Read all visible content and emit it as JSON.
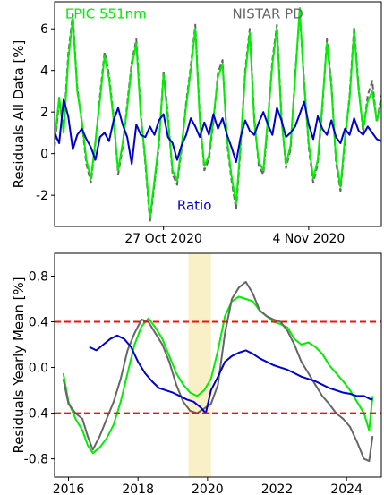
{
  "chart_data": [
    {
      "type": "line",
      "title": "",
      "xlabel": "",
      "ylabel": "Residuals All Data [%]",
      "xlim": [
        "2020-10-21",
        "2020-11-08"
      ],
      "ylim": [
        -3.5,
        7.3
      ],
      "x_ticks": [
        {
          "date": "2020-10-27",
          "label": "27 Oct 2020"
        },
        {
          "date": "2020-11-04",
          "label": "4 Nov 2020"
        }
      ],
      "y_ticks": [
        {
          "value": -2,
          "label": "-2"
        },
        {
          "value": 0,
          "label": "0"
        },
        {
          "value": 2,
          "label": "2"
        },
        {
          "value": 4,
          "label": "4"
        },
        {
          "value": 6,
          "label": "6"
        }
      ],
      "grid": false,
      "legend": "text annotations inside plot",
      "annotations": [
        {
          "text": "EPIC 551nm",
          "color": "#00ee00",
          "date": "2020-10-21T14:00",
          "value": 6.5
        },
        {
          "text": "NISTAR PD",
          "color": "#666666",
          "date": "2020-10-30T19:00",
          "value": 6.5
        },
        {
          "text": "Ratio",
          "color": "#0000cc",
          "date": "2020-10-27T18:00",
          "value": -2.7
        }
      ],
      "series": [
        {
          "color": "#666666",
          "dashed": true,
          "x": [
            "2020-10-21T00:00",
            "2020-10-21T06:00",
            "2020-10-21T12:00",
            "2020-10-21T18:00",
            "2020-10-22T00:00",
            "2020-10-22T06:00",
            "2020-10-22T12:00",
            "2020-10-22T18:00",
            "2020-10-23T00:00",
            "2020-10-23T06:00",
            "2020-10-23T12:00",
            "2020-10-23T18:00",
            "2020-10-24T00:00",
            "2020-10-24T06:00",
            "2020-10-24T12:00",
            "2020-10-24T18:00",
            "2020-10-25T00:00",
            "2020-10-25T06:00",
            "2020-10-25T12:00",
            "2020-10-25T18:00",
            "2020-10-26T00:00",
            "2020-10-26T06:00",
            "2020-10-26T12:00",
            "2020-10-26T18:00",
            "2020-10-27T00:00",
            "2020-10-27T06:00",
            "2020-10-27T12:00",
            "2020-10-27T18:00",
            "2020-10-28T00:00",
            "2020-10-28T06:00",
            "2020-10-28T12:00",
            "2020-10-28T18:00",
            "2020-10-29T00:00",
            "2020-10-29T06:00",
            "2020-10-29T12:00",
            "2020-10-29T18:00",
            "2020-10-30T00:00",
            "2020-10-30T06:00",
            "2020-10-30T12:00",
            "2020-10-30T18:00",
            "2020-10-31T00:00",
            "2020-10-31T06:00",
            "2020-10-31T12:00",
            "2020-10-31T18:00",
            "2020-11-01T00:00",
            "2020-11-01T06:00",
            "2020-11-01T12:00",
            "2020-11-01T18:00",
            "2020-11-02T00:00",
            "2020-11-02T06:00",
            "2020-11-02T12:00",
            "2020-11-02T18:00",
            "2020-11-03T00:00",
            "2020-11-03T06:00",
            "2020-11-03T12:00",
            "2020-11-03T18:00",
            "2020-11-04T00:00",
            "2020-11-04T06:00",
            "2020-11-04T12:00",
            "2020-11-04T18:00",
            "2020-11-05T00:00",
            "2020-11-05T06:00",
            "2020-11-05T12:00",
            "2020-11-05T18:00",
            "2020-11-06T00:00",
            "2020-11-06T06:00",
            "2020-11-06T12:00",
            "2020-11-06T18:00",
            "2020-11-07T00:00",
            "2020-11-07T06:00",
            "2020-11-07T12:00",
            "2020-11-07T18:00",
            "2020-11-08T00:00"
          ],
          "values": [
            0.3,
            2.5,
            1.2,
            4.8,
            6.7,
            3.2,
            1.5,
            -0.5,
            -1.4,
            0.5,
            2.8,
            4.9,
            3.8,
            1.8,
            -1.0,
            0.3,
            2.4,
            4.4,
            5.5,
            2.0,
            -0.5,
            -3.3,
            -1.5,
            0.4,
            4.0,
            1.8,
            -1.0,
            -1.5,
            0.2,
            2.5,
            4.2,
            6.2,
            1.8,
            -0.8,
            -0.3,
            1.5,
            3.9,
            4.5,
            0.5,
            -1.3,
            -2.7,
            0.3,
            4.0,
            6.0,
            1.7,
            -0.6,
            -1.0,
            1.5,
            4.5,
            6.2,
            1.8,
            -0.7,
            0.2,
            3.8,
            6.7,
            3.5,
            0.3,
            -1.4,
            -0.5,
            2.2,
            5.5,
            3.4,
            -0.4,
            -1.8,
            0.6,
            2.8,
            6.1,
            3.2,
            1.0,
            2.8,
            3.5,
            1.5,
            2.8
          ]
        },
        {
          "color": "#00ee00",
          "dashed": false,
          "x": [
            "2020-10-21T00:00",
            "2020-10-21T06:00",
            "2020-10-21T12:00",
            "2020-10-21T18:00",
            "2020-10-22T00:00",
            "2020-10-22T06:00",
            "2020-10-22T12:00",
            "2020-10-22T18:00",
            "2020-10-23T00:00",
            "2020-10-23T06:00",
            "2020-10-23T12:00",
            "2020-10-23T18:00",
            "2020-10-24T00:00",
            "2020-10-24T06:00",
            "2020-10-24T12:00",
            "2020-10-24T18:00",
            "2020-10-25T00:00",
            "2020-10-25T06:00",
            "2020-10-25T12:00",
            "2020-10-25T18:00",
            "2020-10-26T00:00",
            "2020-10-26T06:00",
            "2020-10-26T12:00",
            "2020-10-26T18:00",
            "2020-10-27T00:00",
            "2020-10-27T06:00",
            "2020-10-27T12:00",
            "2020-10-27T18:00",
            "2020-10-28T00:00",
            "2020-10-28T06:00",
            "2020-10-28T12:00",
            "2020-10-28T18:00",
            "2020-10-29T00:00",
            "2020-10-29T06:00",
            "2020-10-29T12:00",
            "2020-10-29T18:00",
            "2020-10-30T00:00",
            "2020-10-30T06:00",
            "2020-10-30T12:00",
            "2020-10-30T18:00",
            "2020-10-31T00:00",
            "2020-10-31T06:00",
            "2020-10-31T12:00",
            "2020-10-31T18:00",
            "2020-11-01T00:00",
            "2020-11-01T06:00",
            "2020-11-01T12:00",
            "2020-11-01T18:00",
            "2020-11-02T00:00",
            "2020-11-02T06:00",
            "2020-11-02T12:00",
            "2020-11-02T18:00",
            "2020-11-03T00:00",
            "2020-11-03T06:00",
            "2020-11-03T12:00",
            "2020-11-03T18:00",
            "2020-11-04T00:00",
            "2020-11-04T06:00",
            "2020-11-04T12:00",
            "2020-11-04T18:00",
            "2020-11-05T00:00",
            "2020-11-05T06:00",
            "2020-11-05T12:00",
            "2020-11-05T18:00",
            "2020-11-06T00:00",
            "2020-11-06T06:00",
            "2020-11-06T12:00",
            "2020-11-06T18:00",
            "2020-11-07T00:00",
            "2020-11-07T06:00",
            "2020-11-07T12:00",
            "2020-11-07T18:00",
            "2020-11-08T00:00"
          ],
          "values": [
            0.6,
            2.7,
            1.0,
            4.5,
            6.5,
            3.0,
            1.6,
            -0.3,
            -1.2,
            0.6,
            2.6,
            4.7,
            3.6,
            1.6,
            -0.8,
            0.5,
            2.2,
            4.2,
            5.3,
            1.8,
            -0.3,
            -3.1,
            -1.3,
            0.6,
            3.8,
            1.6,
            -0.8,
            -1.3,
            0.4,
            2.3,
            4.0,
            6.0,
            1.6,
            -0.6,
            -0.1,
            1.7,
            3.7,
            4.3,
            0.7,
            -1.1,
            -2.4,
            0.5,
            3.8,
            5.8,
            1.5,
            -0.4,
            -0.8,
            1.7,
            4.3,
            6.0,
            1.6,
            -0.5,
            0.4,
            3.6,
            7.0,
            3.3,
            0.5,
            -1.2,
            -0.3,
            2.4,
            5.3,
            3.2,
            -0.2,
            -1.6,
            0.8,
            2.6,
            5.9,
            3.0,
            1.2,
            2.5,
            3.0,
            1.6,
            2.5
          ]
        },
        {
          "color": "#0000cc",
          "dashed": false,
          "x": [
            "2020-10-21T00:00",
            "2020-10-21T06:00",
            "2020-10-21T12:00",
            "2020-10-21T18:00",
            "2020-10-22T00:00",
            "2020-10-22T06:00",
            "2020-10-22T12:00",
            "2020-10-22T18:00",
            "2020-10-23T00:00",
            "2020-10-23T06:00",
            "2020-10-23T12:00",
            "2020-10-23T18:00",
            "2020-10-24T00:00",
            "2020-10-24T06:00",
            "2020-10-24T12:00",
            "2020-10-24T18:00",
            "2020-10-25T00:00",
            "2020-10-25T06:00",
            "2020-10-25T12:00",
            "2020-10-25T18:00",
            "2020-10-26T00:00",
            "2020-10-26T06:00",
            "2020-10-26T12:00",
            "2020-10-26T18:00",
            "2020-10-27T00:00",
            "2020-10-27T06:00",
            "2020-10-27T12:00",
            "2020-10-27T18:00",
            "2020-10-28T00:00",
            "2020-10-28T06:00",
            "2020-10-28T12:00",
            "2020-10-28T18:00",
            "2020-10-29T00:00",
            "2020-10-29T06:00",
            "2020-10-29T12:00",
            "2020-10-29T18:00",
            "2020-10-30T00:00",
            "2020-10-30T06:00",
            "2020-10-30T12:00",
            "2020-10-30T18:00",
            "2020-10-31T00:00",
            "2020-10-31T06:00",
            "2020-10-31T12:00",
            "2020-10-31T18:00",
            "2020-11-01T00:00",
            "2020-11-01T06:00",
            "2020-11-01T12:00",
            "2020-11-01T18:00",
            "2020-11-02T00:00",
            "2020-11-02T06:00",
            "2020-11-02T12:00",
            "2020-11-02T18:00",
            "2020-11-03T00:00",
            "2020-11-03T06:00",
            "2020-11-03T12:00",
            "2020-11-03T18:00",
            "2020-11-04T00:00",
            "2020-11-04T06:00",
            "2020-11-04T12:00",
            "2020-11-04T18:00",
            "2020-11-05T00:00",
            "2020-11-05T06:00",
            "2020-11-05T12:00",
            "2020-11-05T18:00",
            "2020-11-06T00:00",
            "2020-11-06T06:00",
            "2020-11-06T12:00",
            "2020-11-06T18:00",
            "2020-11-07T00:00",
            "2020-11-07T06:00",
            "2020-11-07T12:00",
            "2020-11-07T18:00",
            "2020-11-08T00:00"
          ],
          "values": [
            1.0,
            0.5,
            2.6,
            1.8,
            0.2,
            0.9,
            1.2,
            0.7,
            0.3,
            -0.3,
            0.8,
            1.0,
            0.6,
            1.6,
            2.2,
            1.4,
            0.8,
            -0.5,
            1.4,
            0.9,
            0.8,
            1.3,
            0.9,
            1.6,
            1.9,
            0.8,
            0.5,
            -0.3,
            0.4,
            0.9,
            1.7,
            1.3,
            0.8,
            1.5,
            0.9,
            1.9,
            1.2,
            1.7,
            0.9,
            0.3,
            -0.4,
            0.8,
            1.6,
            1.1,
            0.9,
            1.5,
            2.0,
            1.4,
            0.9,
            2.2,
            1.6,
            0.8,
            1.0,
            1.3,
            1.9,
            2.5,
            1.4,
            0.7,
            1.8,
            1.2,
            0.9,
            1.6,
            0.8,
            0.5,
            1.2,
            0.9,
            1.7,
            1.1,
            0.9,
            1.3,
            1.0,
            0.7,
            0.6
          ]
        }
      ]
    },
    {
      "type": "line",
      "title": "",
      "xlabel": "",
      "ylabel": "Residuals Yearly Mean [%]",
      "xlim": [
        2015.6,
        2025.0
      ],
      "ylim": [
        -0.96,
        1.0
      ],
      "x_ticks": [
        {
          "value": 2016,
          "label": "2016"
        },
        {
          "value": 2018,
          "label": "2018"
        },
        {
          "value": 2020,
          "label": "2020"
        },
        {
          "value": 2022,
          "label": "2022"
        },
        {
          "value": 2024,
          "label": "2024"
        }
      ],
      "y_ticks": [
        {
          "value": -0.8,
          "label": "-0.8"
        },
        {
          "value": -0.4,
          "label": "-0.4"
        },
        {
          "value": 0.0,
          "label": "0.0"
        },
        {
          "value": 0.4,
          "label": "0.4"
        },
        {
          "value": 0.8,
          "label": "0.8"
        }
      ],
      "grid": false,
      "legend": "none",
      "shaded_span": {
        "x": [
          2019.45,
          2020.1
        ],
        "color": "#faf0c8"
      },
      "reference_lines": [
        {
          "value": 0.4,
          "color": "#ee1111",
          "dashed": true
        },
        {
          "value": -0.4,
          "color": "#ee1111",
          "dashed": true
        }
      ],
      "series": [
        {
          "color": "#00ee00",
          "x": [
            2015.85,
            2016.0,
            2016.2,
            2016.4,
            2016.55,
            2016.7,
            2016.9,
            2017.1,
            2017.3,
            2017.5,
            2017.7,
            2017.9,
            2018.1,
            2018.3,
            2018.5,
            2018.7,
            2018.9,
            2019.1,
            2019.3,
            2019.5,
            2019.7,
            2019.9,
            2020.1,
            2020.3,
            2020.5,
            2020.7,
            2020.9,
            2021.1,
            2021.3,
            2021.5,
            2021.7,
            2021.9,
            2022.1,
            2022.3,
            2022.5,
            2022.7,
            2022.9,
            2023.1,
            2023.3,
            2023.5,
            2023.7,
            2023.9,
            2024.1,
            2024.3,
            2024.5,
            2024.65,
            2024.75
          ],
          "values": [
            -0.05,
            -0.3,
            -0.45,
            -0.55,
            -0.68,
            -0.75,
            -0.7,
            -0.62,
            -0.5,
            -0.3,
            -0.05,
            0.2,
            0.36,
            0.43,
            0.35,
            0.25,
            0.1,
            -0.05,
            -0.15,
            -0.22,
            -0.25,
            -0.2,
            -0.1,
            0.15,
            0.45,
            0.58,
            0.62,
            0.6,
            0.58,
            0.5,
            0.45,
            0.4,
            0.38,
            0.35,
            0.25,
            0.2,
            0.22,
            0.18,
            0.12,
            0.02,
            -0.05,
            -0.12,
            -0.2,
            -0.3,
            -0.4,
            -0.55,
            -0.25
          ]
        },
        {
          "color": "#666666",
          "x": [
            2015.85,
            2016.0,
            2016.2,
            2016.4,
            2016.55,
            2016.7,
            2016.9,
            2017.1,
            2017.3,
            2017.5,
            2017.7,
            2017.9,
            2018.1,
            2018.3,
            2018.5,
            2018.7,
            2018.9,
            2019.1,
            2019.3,
            2019.5,
            2019.7,
            2019.9,
            2020.1,
            2020.3,
            2020.5,
            2020.7,
            2020.9,
            2021.1,
            2021.3,
            2021.5,
            2021.7,
            2021.9,
            2022.1,
            2022.3,
            2022.5,
            2022.7,
            2022.9,
            2023.1,
            2023.3,
            2023.5,
            2023.7,
            2023.9,
            2024.1,
            2024.3,
            2024.5,
            2024.65,
            2024.75
          ],
          "values": [
            -0.1,
            -0.32,
            -0.4,
            -0.45,
            -0.6,
            -0.72,
            -0.6,
            -0.45,
            -0.3,
            -0.1,
            0.15,
            0.3,
            0.42,
            0.4,
            0.3,
            0.2,
            0.05,
            -0.15,
            -0.3,
            -0.38,
            -0.4,
            -0.36,
            -0.32,
            -0.15,
            0.3,
            0.6,
            0.7,
            0.75,
            0.65,
            0.5,
            0.45,
            0.42,
            0.4,
            0.32,
            0.2,
            0.05,
            -0.05,
            -0.15,
            -0.25,
            -0.32,
            -0.4,
            -0.45,
            -0.52,
            -0.65,
            -0.8,
            -0.82,
            -0.6
          ]
        },
        {
          "color": "#0000cc",
          "x": [
            2016.6,
            2016.8,
            2017.0,
            2017.2,
            2017.4,
            2017.6,
            2017.8,
            2018.0,
            2018.2,
            2018.4,
            2018.6,
            2018.8,
            2019.0,
            2019.2,
            2019.4,
            2019.6,
            2019.8,
            2019.95,
            2020.1,
            2020.3,
            2020.5,
            2020.7,
            2020.9,
            2021.1,
            2021.3,
            2021.5,
            2021.7,
            2021.9,
            2022.1,
            2022.3,
            2022.5,
            2022.7,
            2022.9,
            2023.1,
            2023.3,
            2023.5,
            2023.7,
            2023.9,
            2024.1,
            2024.3,
            2024.5,
            2024.7,
            2024.75
          ],
          "values": [
            0.18,
            0.15,
            0.2,
            0.25,
            0.28,
            0.25,
            0.18,
            0.05,
            -0.05,
            -0.12,
            -0.18,
            -0.2,
            -0.22,
            -0.25,
            -0.28,
            -0.3,
            -0.35,
            -0.4,
            -0.2,
            -0.08,
            0.05,
            0.1,
            0.13,
            0.15,
            0.12,
            0.08,
            0.05,
            0.02,
            0.0,
            -0.02,
            -0.05,
            -0.08,
            -0.1,
            -0.12,
            -0.15,
            -0.18,
            -0.2,
            -0.22,
            -0.23,
            -0.25,
            -0.25,
            -0.28,
            -0.28
          ]
        }
      ]
    }
  ]
}
